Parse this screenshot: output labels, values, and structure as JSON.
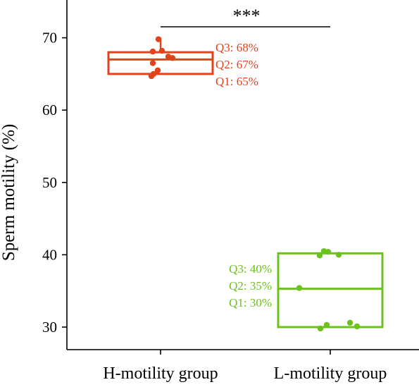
{
  "chart_data": {
    "type": "box",
    "ylabel": "Sperm motility (%)",
    "yticks": [
      30,
      40,
      50,
      60,
      70
    ],
    "categories": [
      "H-motility group",
      "L-motility group"
    ],
    "groups": [
      {
        "name": "H-motility group",
        "color": "#e2421c",
        "q1": 65,
        "median": 67,
        "q3": 68,
        "whisker_low": 65,
        "whisker_high": 70,
        "points": [
          69.8,
          68.2,
          68.1,
          67.4,
          67.2,
          66.5,
          65.5,
          65.0,
          64.7
        ],
        "annotations": [
          "Q3: 68%",
          "Q2: 67%",
          "Q1: 65%"
        ]
      },
      {
        "name": "L-motility group",
        "color": "#6cc21d",
        "q1": 30,
        "median": 35.3,
        "q3": 40.2,
        "whisker_low": 30,
        "whisker_high": 40.2,
        "points": [
          40.5,
          40.4,
          40.0,
          39.9,
          35.4,
          30.6,
          30.3,
          30.1,
          29.8
        ],
        "annotations": [
          "Q3: 40%",
          "Q2: 35%",
          "Q1: 30%"
        ]
      }
    ],
    "significance": "***"
  }
}
